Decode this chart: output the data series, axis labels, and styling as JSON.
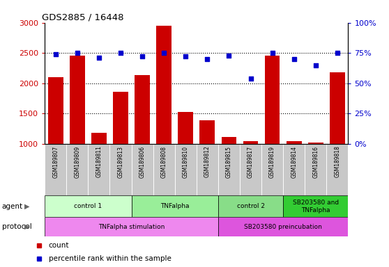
{
  "title": "GDS2885 / 16448",
  "samples": [
    "GSM189807",
    "GSM189809",
    "GSM189811",
    "GSM189813",
    "GSM189806",
    "GSM189808",
    "GSM189810",
    "GSM189812",
    "GSM189815",
    "GSM189817",
    "GSM189819",
    "GSM189814",
    "GSM189816",
    "GSM189818"
  ],
  "counts": [
    2100,
    2450,
    1180,
    1860,
    2130,
    2950,
    1520,
    1390,
    1110,
    1040,
    2460,
    1040,
    1020,
    2180
  ],
  "percentile_ranks": [
    74,
    75,
    71,
    75,
    72,
    75,
    72,
    70,
    73,
    54,
    75,
    70,
    65,
    75
  ],
  "bar_color": "#cc0000",
  "dot_color": "#0000cc",
  "ylim_left": [
    1000,
    3000
  ],
  "ylim_right": [
    0,
    100
  ],
  "yticks_left": [
    1000,
    1500,
    2000,
    2500,
    3000
  ],
  "yticks_right": [
    0,
    25,
    50,
    75,
    100
  ],
  "ytick_labels_right": [
    "0%",
    "25%",
    "50%",
    "75%",
    "100%"
  ],
  "grid_lines": [
    1500,
    2000,
    2500
  ],
  "agent_groups": [
    {
      "label": "control 1",
      "start": 0,
      "end": 3,
      "color": "#ccffcc"
    },
    {
      "label": "TNFalpha",
      "start": 4,
      "end": 7,
      "color": "#99ee99"
    },
    {
      "label": "control 2",
      "start": 8,
      "end": 10,
      "color": "#88dd88"
    },
    {
      "label": "SB203580 and\nTNFalpha",
      "start": 11,
      "end": 13,
      "color": "#33cc33"
    }
  ],
  "protocol_groups": [
    {
      "label": "TNFalpha stimulation",
      "start": 0,
      "end": 7,
      "color": "#ee88ee"
    },
    {
      "label": "SB203580 preincubation",
      "start": 8,
      "end": 13,
      "color": "#dd55dd"
    }
  ],
  "xlabel_area_color": "#c8c8c8",
  "legend_items": [
    {
      "color": "#cc0000",
      "label": "count"
    },
    {
      "color": "#0000cc",
      "label": "percentile rank within the sample"
    }
  ]
}
